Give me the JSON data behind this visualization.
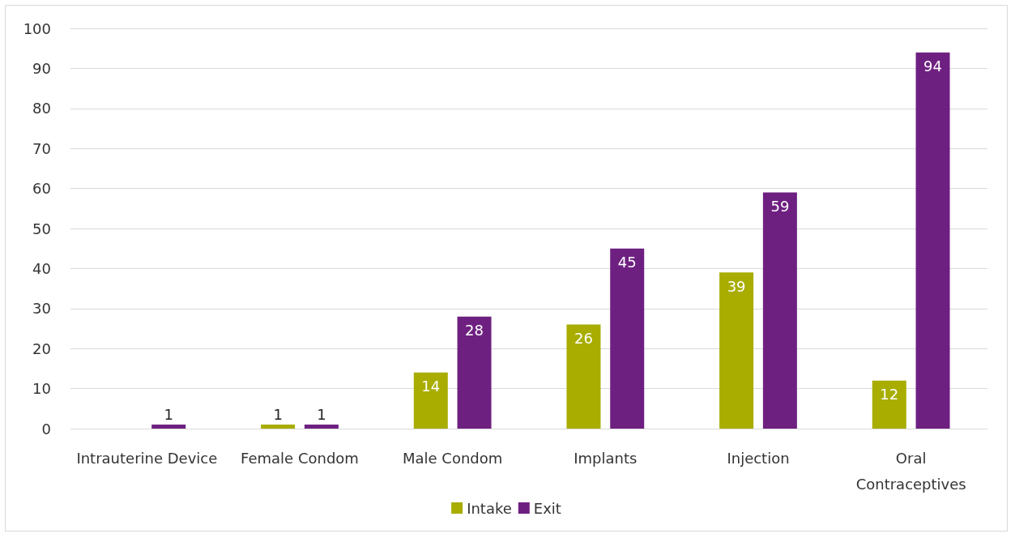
{
  "chart_data": {
    "type": "bar",
    "categories": [
      "Intrauterine Device",
      "Female Condom",
      "Male Condom",
      "Implants",
      "Injection",
      "Oral\nContraceptives"
    ],
    "series": [
      {
        "name": "Intake",
        "color": "#a8ad00",
        "values": [
          null,
          1,
          14,
          26,
          39,
          12
        ],
        "value_labels": [
          null,
          "1",
          "14",
          "26",
          "39",
          "12"
        ]
      },
      {
        "name": "Exit",
        "color": "#6e2081",
        "values": [
          1,
          1,
          28,
          45,
          59,
          94
        ],
        "value_labels": [
          "1",
          "1",
          "28",
          "45",
          "59",
          "94"
        ]
      }
    ],
    "ylim": [
      0,
      100
    ],
    "yticks": [
      0,
      10,
      20,
      30,
      40,
      50,
      60,
      70,
      80,
      90,
      100
    ],
    "grid": "y",
    "legend": "bottom"
  }
}
